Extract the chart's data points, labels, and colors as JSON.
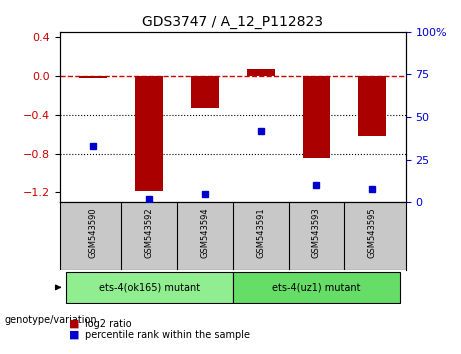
{
  "title": "GDS3747 / A_12_P112823",
  "samples": [
    "GSM543590",
    "GSM543592",
    "GSM543594",
    "GSM543591",
    "GSM543593",
    "GSM543595"
  ],
  "log2_ratios": [
    -0.02,
    -1.18,
    -0.33,
    0.07,
    -0.85,
    -0.62
  ],
  "percentile_ranks": [
    33,
    2,
    5,
    42,
    10,
    8
  ],
  "groups": [
    {
      "label": "ets-4(ok165) mutant",
      "indices": [
        0,
        1,
        2
      ],
      "color": "#90EE90"
    },
    {
      "label": "ets-4(uz1) mutant",
      "indices": [
        3,
        4,
        5
      ],
      "color": "#66DD66"
    }
  ],
  "bar_color": "#AA0000",
  "dot_color": "#0000CC",
  "ylim_left": [
    -1.3,
    0.45
  ],
  "ylim_right": [
    0,
    100
  ],
  "yticks_left": [
    0.4,
    0.0,
    -0.4,
    -0.8,
    -1.2
  ],
  "yticks_right": [
    100,
    75,
    50,
    25,
    0
  ],
  "sample_row_color": "#C8C8C8",
  "legend_log2_color": "#AA0000",
  "legend_pct_color": "#0000CC",
  "hline_color": "#CC0000",
  "dotted_line_color": "#000000",
  "background_color": "#FFFFFF"
}
